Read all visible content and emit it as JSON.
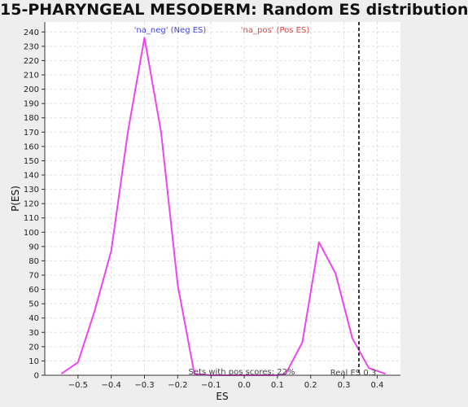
{
  "chart_data": {
    "type": "line",
    "title": "15-PHARYNGEAL MESODERM: Random ES distribution",
    "xlabel": "ES",
    "ylabel": "P(ES)",
    "xlim": [
      -0.6,
      0.47
    ],
    "ylim": [
      0,
      247
    ],
    "x_ticks": [
      -0.5,
      -0.4,
      -0.3,
      -0.2,
      -0.1,
      0.0,
      0.1,
      0.2,
      0.3,
      0.4
    ],
    "x_tick_labels": [
      "−0.5",
      "−0.4",
      "−0.3",
      "−0.2",
      "−0.1",
      "0.0",
      "0.1",
      "0.2",
      "0.3",
      "0.4"
    ],
    "y_ticks": [
      0,
      10,
      20,
      30,
      40,
      50,
      60,
      70,
      80,
      90,
      100,
      110,
      120,
      130,
      140,
      150,
      160,
      170,
      180,
      190,
      200,
      210,
      220,
      230,
      240
    ],
    "grid": true,
    "legend": [
      {
        "label": "'na_neg' (Neg ES)",
        "color": "#4444dd"
      },
      {
        "label": "'na_pos' (Pos ES)",
        "color": "#dd4444"
      }
    ],
    "series": [
      {
        "name": "Random ES distribution",
        "color": "#ee44ee",
        "x": [
          -0.55,
          -0.5,
          -0.45,
          -0.4,
          -0.35,
          -0.3,
          -0.25,
          -0.2,
          -0.15,
          -0.1,
          -0.05,
          0.0,
          0.05,
          0.1,
          0.125,
          0.175,
          0.225,
          0.275,
          0.325,
          0.375,
          0.425
        ],
        "y": [
          1,
          9,
          45,
          87,
          170,
          236,
          170,
          63,
          1,
          0,
          0,
          0,
          0,
          0,
          1,
          23,
          93,
          71,
          26,
          5,
          1
        ]
      }
    ],
    "real_es": {
      "value": 0.345,
      "label": "Real ES 0.3",
      "color": "#333333"
    },
    "annotation": "Sets with pos scores: 22%"
  }
}
